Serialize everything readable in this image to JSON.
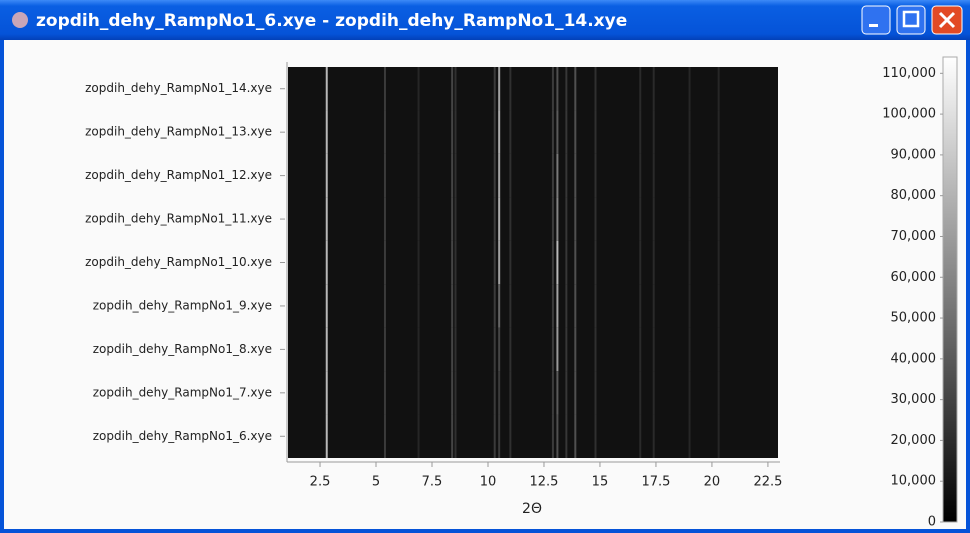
{
  "window": {
    "title": "zopdih_dehy_RampNo1_6.xye - zopdih_dehy_RampNo1_14.xye"
  },
  "chart_data": {
    "type": "heatmap",
    "x_label": "2Θ",
    "categories": [
      "zopdih_dehy_RampNo1_14.xye",
      "zopdih_dehy_RampNo1_13.xye",
      "zopdih_dehy_RampNo1_12.xye",
      "zopdih_dehy_RampNo1_11.xye",
      "zopdih_dehy_RampNo1_10.xye",
      "zopdih_dehy_RampNo1_9.xye",
      "zopdih_dehy_RampNo1_8.xye",
      "zopdih_dehy_RampNo1_7.xye",
      "zopdih_dehy_RampNo1_6.xye"
    ],
    "x": [
      2.8,
      5.4,
      6.9,
      8.4,
      8.55,
      10.3,
      10.5,
      11.0,
      12.9,
      13.1,
      13.5,
      13.9,
      14.8,
      16.8,
      17.4,
      19.0,
      20.3
    ],
    "values": [
      [
        80000,
        20000,
        10000,
        25000,
        15000,
        20000,
        70000,
        15000,
        20000,
        30000,
        18000,
        30000,
        15000,
        12000,
        12000,
        10000,
        10000
      ],
      [
        80000,
        20000,
        10000,
        25000,
        15000,
        20000,
        75000,
        15000,
        20000,
        35000,
        18000,
        30000,
        15000,
        12000,
        12000,
        10000,
        10000
      ],
      [
        80000,
        20000,
        10000,
        25000,
        15000,
        20000,
        72000,
        15000,
        20000,
        50000,
        18000,
        30000,
        15000,
        12000,
        12000,
        10000,
        10000
      ],
      [
        80000,
        20000,
        10000,
        25000,
        15000,
        20000,
        75000,
        15000,
        20000,
        55000,
        18000,
        30000,
        15000,
        12000,
        12000,
        10000,
        10000
      ],
      [
        80000,
        20000,
        10000,
        25000,
        15000,
        20000,
        70000,
        15000,
        20000,
        80000,
        18000,
        30000,
        15000,
        12000,
        12000,
        10000,
        10000
      ],
      [
        80000,
        20000,
        10000,
        25000,
        15000,
        20000,
        40000,
        15000,
        20000,
        70000,
        18000,
        30000,
        15000,
        12000,
        12000,
        10000,
        10000
      ],
      [
        80000,
        20000,
        10000,
        25000,
        15000,
        20000,
        25000,
        15000,
        20000,
        65000,
        18000,
        30000,
        15000,
        12000,
        12000,
        10000,
        10000
      ],
      [
        80000,
        20000,
        10000,
        25000,
        15000,
        20000,
        20000,
        15000,
        20000,
        35000,
        18000,
        30000,
        15000,
        12000,
        12000,
        10000,
        10000
      ],
      [
        80000,
        20000,
        10000,
        25000,
        15000,
        20000,
        20000,
        15000,
        20000,
        30000,
        18000,
        30000,
        15000,
        12000,
        12000,
        10000,
        10000
      ]
    ],
    "xlim": [
      1.07,
      22.95
    ],
    "xticks": [
      2.5,
      5,
      7.5,
      10,
      12.5,
      15,
      17.5,
      20,
      22.5
    ],
    "zlim": [
      0,
      114000
    ],
    "zticks": [
      0,
      {
        "value": 10000,
        "label": "10,000"
      },
      {
        "value": 20000,
        "label": "20,000"
      },
      {
        "value": 30000,
        "label": "30,000"
      },
      {
        "value": 40000,
        "label": "40,000"
      },
      {
        "value": 50000,
        "label": "50,000"
      },
      {
        "value": 60000,
        "label": "60,000"
      },
      {
        "value": 70000,
        "label": "70,000"
      },
      {
        "value": 80000,
        "label": "80,000"
      },
      {
        "value": 90000,
        "label": "90,000"
      },
      {
        "value": 100000,
        "label": "100,000"
      },
      {
        "value": 110000,
        "label": "110,000"
      }
    ]
  }
}
